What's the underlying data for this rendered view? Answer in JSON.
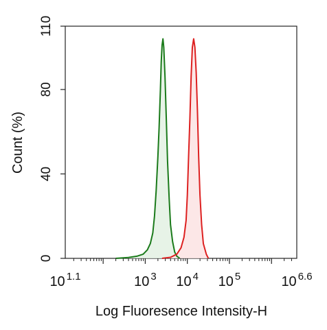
{
  "chart_data": {
    "type": "area",
    "xlabel": "Log Fluoresence Intensity-H",
    "ylabel": "Count  (%)",
    "x_scale": "log10",
    "xlim": [
      1.1,
      6.6
    ],
    "ylim": [
      0,
      110
    ],
    "y_ticks": [
      0,
      40,
      80,
      110
    ],
    "x_ticks": [
      {
        "base": "10",
        "exp": "1.1",
        "log": 1.1
      },
      {
        "base": "10",
        "exp": "3",
        "log": 3
      },
      {
        "base": "10",
        "exp": "4",
        "log": 4
      },
      {
        "base": "10",
        "exp": "5",
        "log": 5
      },
      {
        "base": "10",
        "exp": "6.6",
        "log": 6.6
      }
    ],
    "grid": false,
    "legend": "none",
    "series": [
      {
        "color": "#1a7a1a",
        "fill": "#e3f1e3",
        "points": [
          [
            2.3,
            0
          ],
          [
            2.6,
            0.4
          ],
          [
            2.8,
            1
          ],
          [
            2.95,
            2
          ],
          [
            3.05,
            4
          ],
          [
            3.12,
            7
          ],
          [
            3.18,
            12
          ],
          [
            3.22,
            20
          ],
          [
            3.26,
            32
          ],
          [
            3.3,
            48
          ],
          [
            3.33,
            62
          ],
          [
            3.36,
            80
          ],
          [
            3.38,
            93
          ],
          [
            3.4,
            101
          ],
          [
            3.42,
            104
          ],
          [
            3.44,
            100
          ],
          [
            3.47,
            86
          ],
          [
            3.5,
            66
          ],
          [
            3.53,
            46
          ],
          [
            3.57,
            28
          ],
          [
            3.6,
            16
          ],
          [
            3.65,
            8
          ],
          [
            3.7,
            3
          ],
          [
            3.75,
            1
          ],
          [
            3.82,
            0
          ]
        ]
      },
      {
        "color": "#dd2020",
        "fill": "#fbe3e3",
        "points": [
          [
            3.4,
            0
          ],
          [
            3.6,
            0.5
          ],
          [
            3.75,
            2
          ],
          [
            3.85,
            5
          ],
          [
            3.92,
            10
          ],
          [
            3.97,
            18
          ],
          [
            4.0,
            30
          ],
          [
            4.03,
            48
          ],
          [
            4.06,
            66
          ],
          [
            4.09,
            86
          ],
          [
            4.12,
            100
          ],
          [
            4.15,
            104
          ],
          [
            4.18,
            100
          ],
          [
            4.21,
            88
          ],
          [
            4.24,
            70
          ],
          [
            4.27,
            48
          ],
          [
            4.3,
            30
          ],
          [
            4.34,
            16
          ],
          [
            4.38,
            7
          ],
          [
            4.45,
            2
          ],
          [
            4.5,
            0
          ]
        ]
      }
    ]
  }
}
